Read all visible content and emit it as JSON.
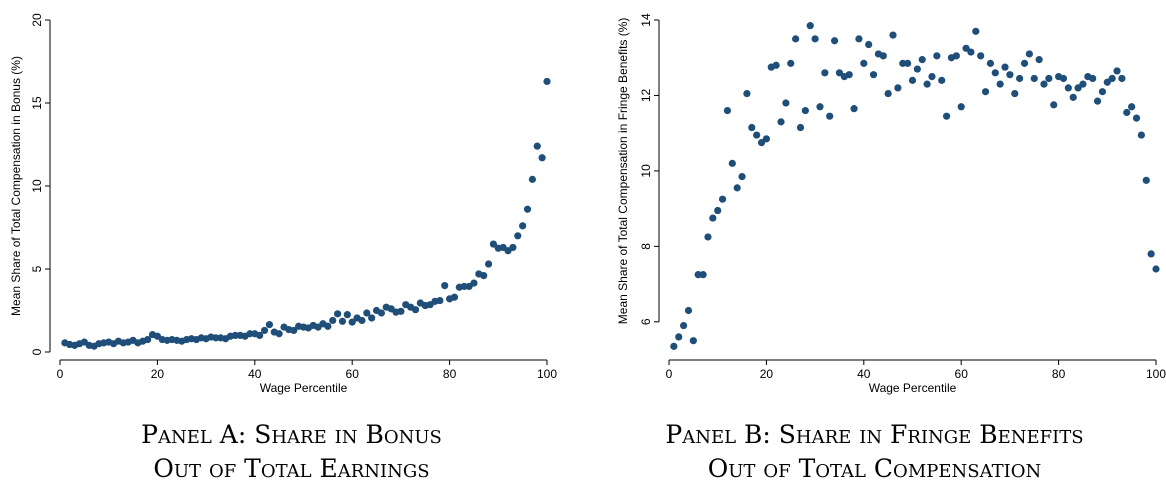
{
  "panels": [
    {
      "caption_line1": "Panel A: Share in Bonus",
      "caption_line2": "Out of Total Earnings"
    },
    {
      "caption_line1": "Panel B: Share in Fringe Benefits",
      "caption_line2": "Out of Total Compensation"
    }
  ],
  "dot_color": "#1f4e79",
  "chart_data": [
    {
      "type": "scatter",
      "xlabel": "Wage Percentile",
      "ylabel": "Mean Share of Total Compensation in Bonus (%)",
      "xlim": [
        0,
        100
      ],
      "ylim": [
        0,
        20
      ],
      "xticks": [
        0,
        20,
        40,
        60,
        80,
        100
      ],
      "yticks": [
        0,
        5,
        10,
        15,
        20
      ],
      "grid": false,
      "x": [
        1,
        2,
        3,
        4,
        5,
        6,
        7,
        8,
        9,
        10,
        11,
        12,
        13,
        14,
        15,
        16,
        17,
        18,
        19,
        20,
        21,
        22,
        23,
        24,
        25,
        26,
        27,
        28,
        29,
        30,
        31,
        32,
        33,
        34,
        35,
        36,
        37,
        38,
        39,
        40,
        41,
        42,
        43,
        44,
        45,
        46,
        47,
        48,
        49,
        50,
        51,
        52,
        53,
        54,
        55,
        56,
        57,
        58,
        59,
        60,
        61,
        62,
        63,
        64,
        65,
        66,
        67,
        68,
        69,
        70,
        71,
        72,
        73,
        74,
        75,
        76,
        77,
        78,
        79,
        80,
        81,
        82,
        83,
        84,
        85,
        86,
        87,
        88,
        89,
        90,
        91,
        92,
        93,
        94,
        95,
        96,
        97,
        98,
        99,
        100
      ],
      "y": [
        0.55,
        0.45,
        0.4,
        0.5,
        0.6,
        0.4,
        0.35,
        0.5,
        0.55,
        0.6,
        0.5,
        0.65,
        0.55,
        0.6,
        0.7,
        0.55,
        0.65,
        0.75,
        1.05,
        0.95,
        0.75,
        0.7,
        0.75,
        0.7,
        0.65,
        0.75,
        0.8,
        0.75,
        0.85,
        0.8,
        0.9,
        0.85,
        0.85,
        0.8,
        0.95,
        1.0,
        1.0,
        0.95,
        1.1,
        1.1,
        1.0,
        1.3,
        1.65,
        1.2,
        1.1,
        1.5,
        1.35,
        1.3,
        1.55,
        1.5,
        1.45,
        1.6,
        1.5,
        1.7,
        1.55,
        1.9,
        2.3,
        1.85,
        2.25,
        1.8,
        2.05,
        1.9,
        2.35,
        2.05,
        2.5,
        2.35,
        2.7,
        2.6,
        2.4,
        2.45,
        2.85,
        2.7,
        2.55,
        2.95,
        2.8,
        2.85,
        3.05,
        3.1,
        4.0,
        3.2,
        3.3,
        3.9,
        3.95,
        3.95,
        4.15,
        4.7,
        4.6,
        5.3,
        6.5,
        6.25,
        6.3,
        6.1,
        6.3,
        7.0,
        7.6,
        8.6,
        10.4,
        12.4,
        11.7,
        16.3
      ]
    },
    {
      "type": "scatter",
      "xlabel": "Wage Percentile",
      "ylabel": "Mean Share of Total Compensation in Fringe Benefits (%)",
      "xlim": [
        0,
        100
      ],
      "ylim": [
        5.2,
        14
      ],
      "xticks": [
        0,
        20,
        40,
        60,
        80,
        100
      ],
      "yticks": [
        6,
        8,
        10,
        12,
        14
      ],
      "grid": false,
      "x": [
        1,
        2,
        3,
        4,
        5,
        6,
        7,
        8,
        9,
        10,
        11,
        12,
        13,
        14,
        15,
        16,
        17,
        18,
        19,
        20,
        21,
        22,
        23,
        24,
        25,
        26,
        27,
        28,
        29,
        30,
        31,
        32,
        33,
        34,
        35,
        36,
        37,
        38,
        39,
        40,
        41,
        42,
        43,
        44,
        45,
        46,
        47,
        48,
        49,
        50,
        51,
        52,
        53,
        54,
        55,
        56,
        57,
        58,
        59,
        60,
        61,
        62,
        63,
        64,
        65,
        66,
        67,
        68,
        69,
        70,
        71,
        72,
        73,
        74,
        75,
        76,
        77,
        78,
        79,
        80,
        81,
        82,
        83,
        84,
        85,
        86,
        87,
        88,
        89,
        90,
        91,
        92,
        93,
        94,
        95,
        96,
        97,
        98,
        99,
        100
      ],
      "y": [
        5.35,
        5.6,
        5.9,
        6.3,
        5.5,
        7.25,
        7.25,
        8.25,
        8.75,
        8.95,
        9.25,
        11.6,
        10.2,
        9.55,
        9.85,
        12.05,
        11.15,
        10.95,
        10.75,
        10.85,
        12.75,
        12.8,
        11.3,
        11.8,
        12.85,
        13.5,
        11.15,
        11.6,
        13.85,
        13.5,
        11.7,
        12.6,
        11.45,
        13.45,
        12.6,
        12.5,
        12.55,
        11.65,
        13.5,
        12.85,
        13.35,
        12.55,
        13.1,
        13.05,
        12.05,
        13.6,
        12.2,
        12.85,
        12.85,
        12.4,
        12.7,
        12.95,
        12.3,
        12.5,
        13.05,
        12.4,
        11.45,
        13.0,
        13.05,
        11.7,
        13.25,
        13.15,
        13.7,
        13.05,
        12.1,
        12.85,
        12.6,
        12.3,
        12.75,
        12.55,
        12.05,
        12.45,
        12.85,
        13.1,
        12.45,
        12.95,
        12.3,
        12.45,
        11.75,
        12.5,
        12.45,
        12.2,
        11.95,
        12.2,
        12.3,
        12.5,
        12.45,
        11.85,
        12.1,
        12.35,
        12.45,
        12.65,
        12.45,
        11.55,
        11.7,
        11.4,
        10.95,
        9.75,
        7.8,
        7.4
      ]
    }
  ]
}
